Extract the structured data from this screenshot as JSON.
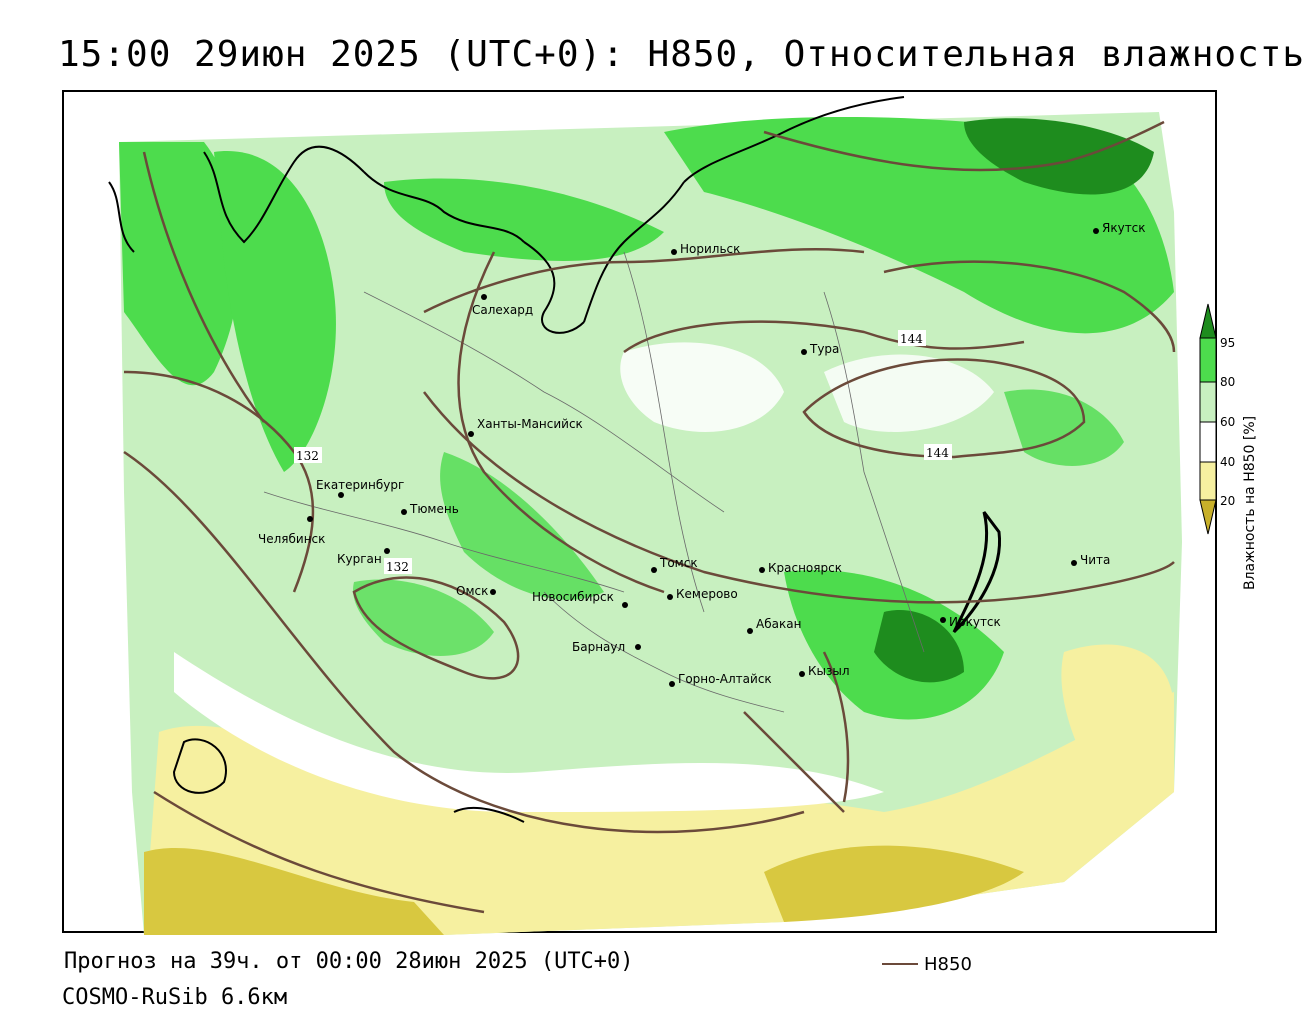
{
  "title": "15:00 29июн 2025 (UTC+0): H850, Относительная влажность",
  "footer": {
    "forecast": "Прогноз на 39ч. от 00:00 28июн 2025 (UTC+0)",
    "model": "COSMO-RuSib 6.6км",
    "contour_key_label": "H850"
  },
  "legend": {
    "title": "Влажность на H850 [%]",
    "ticks": [
      "95",
      "80",
      "60",
      "40",
      "20"
    ],
    "colors": {
      "very_dry": "#c8b02a",
      "dry": "#f6f0a0",
      "neutral": "#ffffff",
      "moist": "#c8f0c0",
      "wet": "#4ddc4d",
      "very_wet": "#1e8c1e"
    }
  },
  "contour_labels": [
    {
      "text": "144"
    },
    {
      "text": "144"
    },
    {
      "text": "132"
    },
    {
      "text": "132"
    }
  ],
  "cities": [
    {
      "name": "Якутск"
    },
    {
      "name": "Норильск"
    },
    {
      "name": "Салехард"
    },
    {
      "name": "Тура"
    },
    {
      "name": "Ханты-Мансийск"
    },
    {
      "name": "Екатеринбург"
    },
    {
      "name": "Тюмень"
    },
    {
      "name": "Челябинск"
    },
    {
      "name": "Курган"
    },
    {
      "name": "Омск"
    },
    {
      "name": "Новосибирск"
    },
    {
      "name": "Томск"
    },
    {
      "name": "Кемерово"
    },
    {
      "name": "Красноярск"
    },
    {
      "name": "Чита"
    },
    {
      "name": "Иркутск"
    },
    {
      "name": "Абакан"
    },
    {
      "name": "Барнаул"
    },
    {
      "name": "Кызыл"
    },
    {
      "name": "Горно-Алтайск"
    }
  ]
}
